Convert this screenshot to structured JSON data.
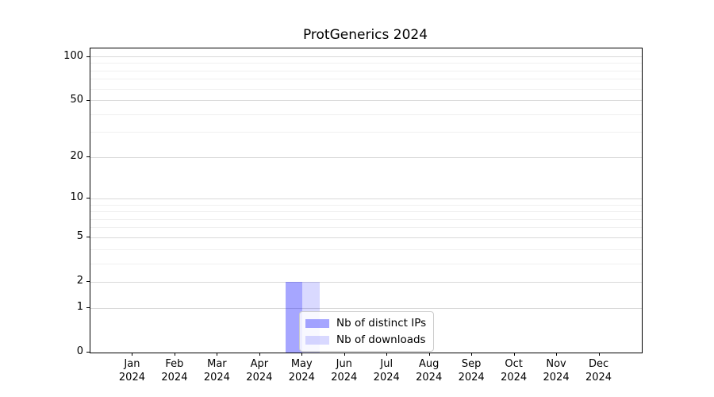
{
  "chart_data": {
    "type": "bar",
    "title": "ProtGenerics 2024",
    "xlabel": "",
    "ylabel": "",
    "year_label": "2024",
    "categories": [
      "Jan",
      "Feb",
      "Mar",
      "Apr",
      "May",
      "Jun",
      "Jul",
      "Aug",
      "Sep",
      "Oct",
      "Nov",
      "Dec"
    ],
    "series": [
      {
        "name": "Nb of distinct IPs",
        "color": "#0000ff",
        "alpha": 0.35,
        "values": [
          0,
          0,
          0,
          0,
          2,
          0,
          0,
          0,
          0,
          0,
          0,
          0
        ]
      },
      {
        "name": "Nb of downloads",
        "color": "#0000ff",
        "alpha": 0.15,
        "values": [
          0,
          0,
          0,
          0,
          2,
          0,
          0,
          0,
          0,
          0,
          0,
          0
        ]
      }
    ],
    "yscale": "log1p",
    "ylim": [
      0,
      115
    ],
    "y_major_ticks": [
      0,
      1,
      2,
      5,
      10,
      20,
      50,
      100
    ],
    "y_minor_gridlines": [
      3,
      4,
      6,
      7,
      8,
      9,
      30,
      40,
      60,
      70,
      80,
      90
    ],
    "grid": "horizontal",
    "legend_position": "lower center-left inside axes",
    "colors": {
      "major_grid": "#d9d9d9",
      "minor_grid": "#f0f0f0",
      "axis": "#000000",
      "text": "#000000",
      "background": "#ffffff"
    }
  }
}
